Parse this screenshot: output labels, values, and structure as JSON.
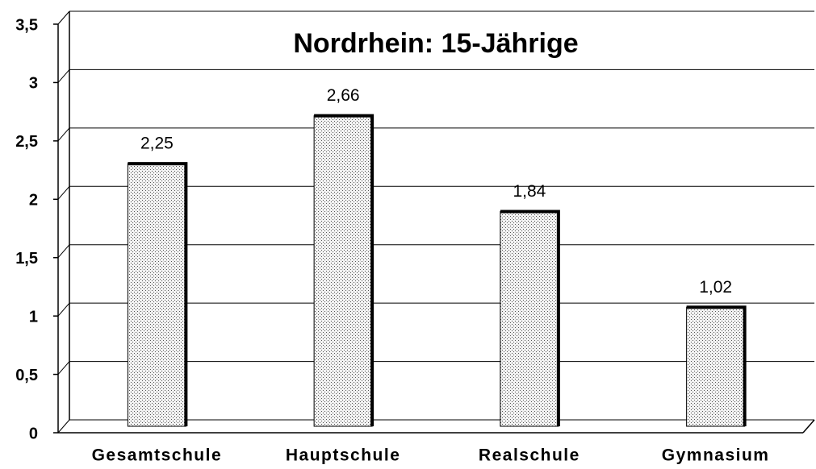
{
  "chart_data": {
    "type": "bar",
    "title": "Nordrhein: 15-Jährige",
    "categories": [
      "Gesamtschule",
      "Hauptschule",
      "Realschule",
      "Gymnasium"
    ],
    "values": [
      2.25,
      2.66,
      1.84,
      1.02
    ],
    "value_labels": [
      "2,25",
      "2,66",
      "1,84",
      "1,02"
    ],
    "ylim": [
      0,
      3.5
    ],
    "yticks": [
      0,
      {
        "value": 0.5,
        "label": "0,5"
      },
      1,
      {
        "value": 1.5,
        "label": "1,5"
      },
      2,
      {
        "value": 2.5,
        "label": "2,5"
      },
      3,
      {
        "value": 3.5,
        "label": "3,5"
      }
    ],
    "grid": true
  }
}
